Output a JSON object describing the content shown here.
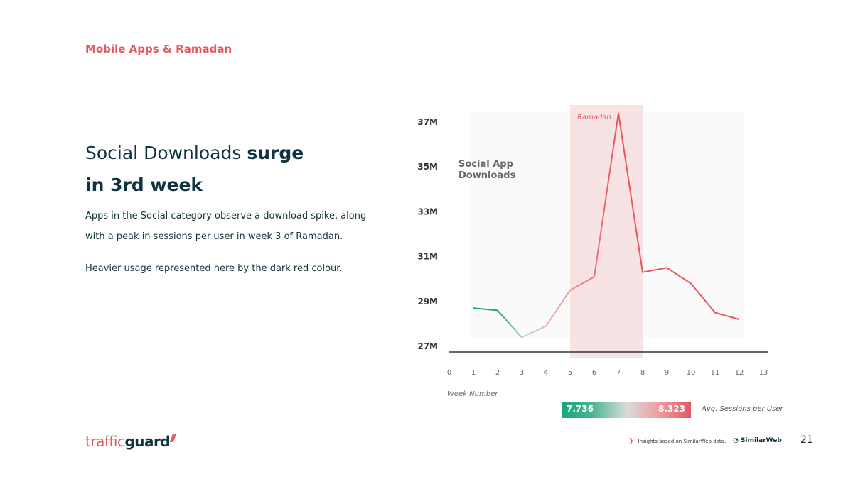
{
  "header": {
    "section_title": "Mobile Apps & Ramadan"
  },
  "headline": {
    "part1": "Social Downloads ",
    "part2": "surge",
    "part3": "in 3rd week"
  },
  "body": {
    "paragraph1": "Apps in the Social category observe a download spike, along with a peak in sessions per user in week 3 of Ramadan.",
    "paragraph2": "Heavier usage represented here by the dark red colour."
  },
  "chart_data": {
    "type": "line",
    "series_label_line1": "Social App",
    "series_label_line2": "Downloads",
    "xlabel": "Week Number",
    "ylabel": "",
    "x_ticks": [
      "0",
      "1",
      "2",
      "3",
      "4",
      "5",
      "6",
      "7",
      "8",
      "9",
      "10",
      "11",
      "12",
      "13"
    ],
    "y_ticks": [
      "27M",
      "29M",
      "31M",
      "33M",
      "35M",
      "37M"
    ],
    "xlim": [
      0,
      13
    ],
    "ylim": [
      27,
      37
    ],
    "x": [
      1,
      2,
      3,
      4,
      5,
      6,
      7,
      8,
      9,
      10,
      11,
      12
    ],
    "values": [
      28.7,
      28.6,
      27.4,
      27.9,
      29.5,
      30.1,
      37.4,
      30.3,
      30.5,
      29.8,
      28.5,
      28.2
    ],
    "sessions_per_user_min": "7.736",
    "sessions_per_user_max": "8.323",
    "legend_label": "Avg. Sessions per User",
    "highlight_region": {
      "label": "Ramadan",
      "x_start": 5,
      "x_end": 8
    },
    "colors": {
      "low": "#1aa57b",
      "mid": "#d7dcd9",
      "high": "#e8555e",
      "highlight_band": "#f8e3e4",
      "axis": "#333333"
    },
    "grid": false
  },
  "footer": {
    "logo_part1": "traffic",
    "logo_part2": "guard",
    "note_prefix": "Insights based on ",
    "note_link": "SimilarWeb",
    "note_suffix": " data.",
    "partner_logo": "SimilarWeb",
    "page_number": "21"
  }
}
